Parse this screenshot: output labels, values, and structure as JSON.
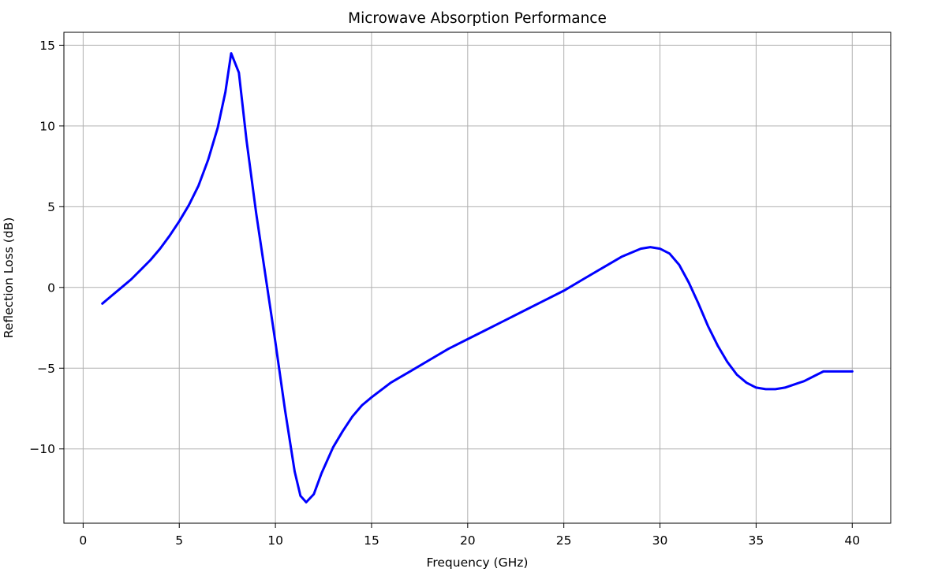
{
  "chart_data": {
    "type": "line",
    "title": "Microwave Absorption Performance",
    "xlabel": "Frequency (GHz)",
    "ylabel": "Reflection Loss (dB)",
    "xlim": [
      -1,
      42
    ],
    "ylim": [
      -14.6,
      15.8
    ],
    "xticks": [
      0,
      5,
      10,
      15,
      20,
      25,
      30,
      35,
      40
    ],
    "yticks": [
      -10,
      -5,
      0,
      5,
      10,
      15
    ],
    "xtick_labels": [
      "0",
      "5",
      "10",
      "15",
      "20",
      "25",
      "30",
      "35",
      "40"
    ],
    "ytick_labels": [
      "−10",
      "−5",
      "0",
      "5",
      "10",
      "15"
    ],
    "grid": true,
    "series": [
      {
        "color": "#0000ff",
        "x": [
          1,
          1.5,
          2,
          2.5,
          3,
          3.5,
          4,
          4.5,
          5,
          5.5,
          6,
          6.5,
          7,
          7.4,
          7.7,
          8.1,
          8.5,
          9,
          9.5,
          10,
          10.5,
          11,
          11.3,
          11.6,
          12,
          12.4,
          13,
          13.5,
          14,
          14.5,
          15,
          16,
          17,
          18,
          19,
          20,
          21,
          22,
          23,
          24,
          25,
          26,
          27,
          28,
          29,
          29.5,
          30,
          30.5,
          31,
          31.5,
          32,
          32.5,
          33,
          33.5,
          34,
          34.5,
          35,
          35.5,
          36,
          36.5,
          37,
          37.5,
          38,
          38.5,
          39,
          39.5,
          40
        ],
        "y": [
          -1.0,
          -0.5,
          0.0,
          0.5,
          1.1,
          1.7,
          2.4,
          3.2,
          4.1,
          5.1,
          6.3,
          7.9,
          9.9,
          12.1,
          14.5,
          13.3,
          9.1,
          4.6,
          0.6,
          -3.4,
          -7.6,
          -11.4,
          -12.9,
          -13.3,
          -12.8,
          -11.5,
          -9.9,
          -8.9,
          -8.0,
          -7.3,
          -6.8,
          -5.9,
          -5.2,
          -4.5,
          -3.8,
          -3.2,
          -2.6,
          -2.0,
          -1.4,
          -0.8,
          -0.2,
          0.5,
          1.2,
          1.9,
          2.4,
          2.5,
          2.4,
          2.1,
          1.4,
          0.3,
          -1.0,
          -2.4,
          -3.6,
          -4.6,
          -5.4,
          -5.9,
          -6.2,
          -6.3,
          -6.3,
          -6.2,
          -6.0,
          -5.8,
          -5.5,
          -5.2,
          -5.2,
          -5.2,
          -5.2
        ]
      }
    ]
  }
}
